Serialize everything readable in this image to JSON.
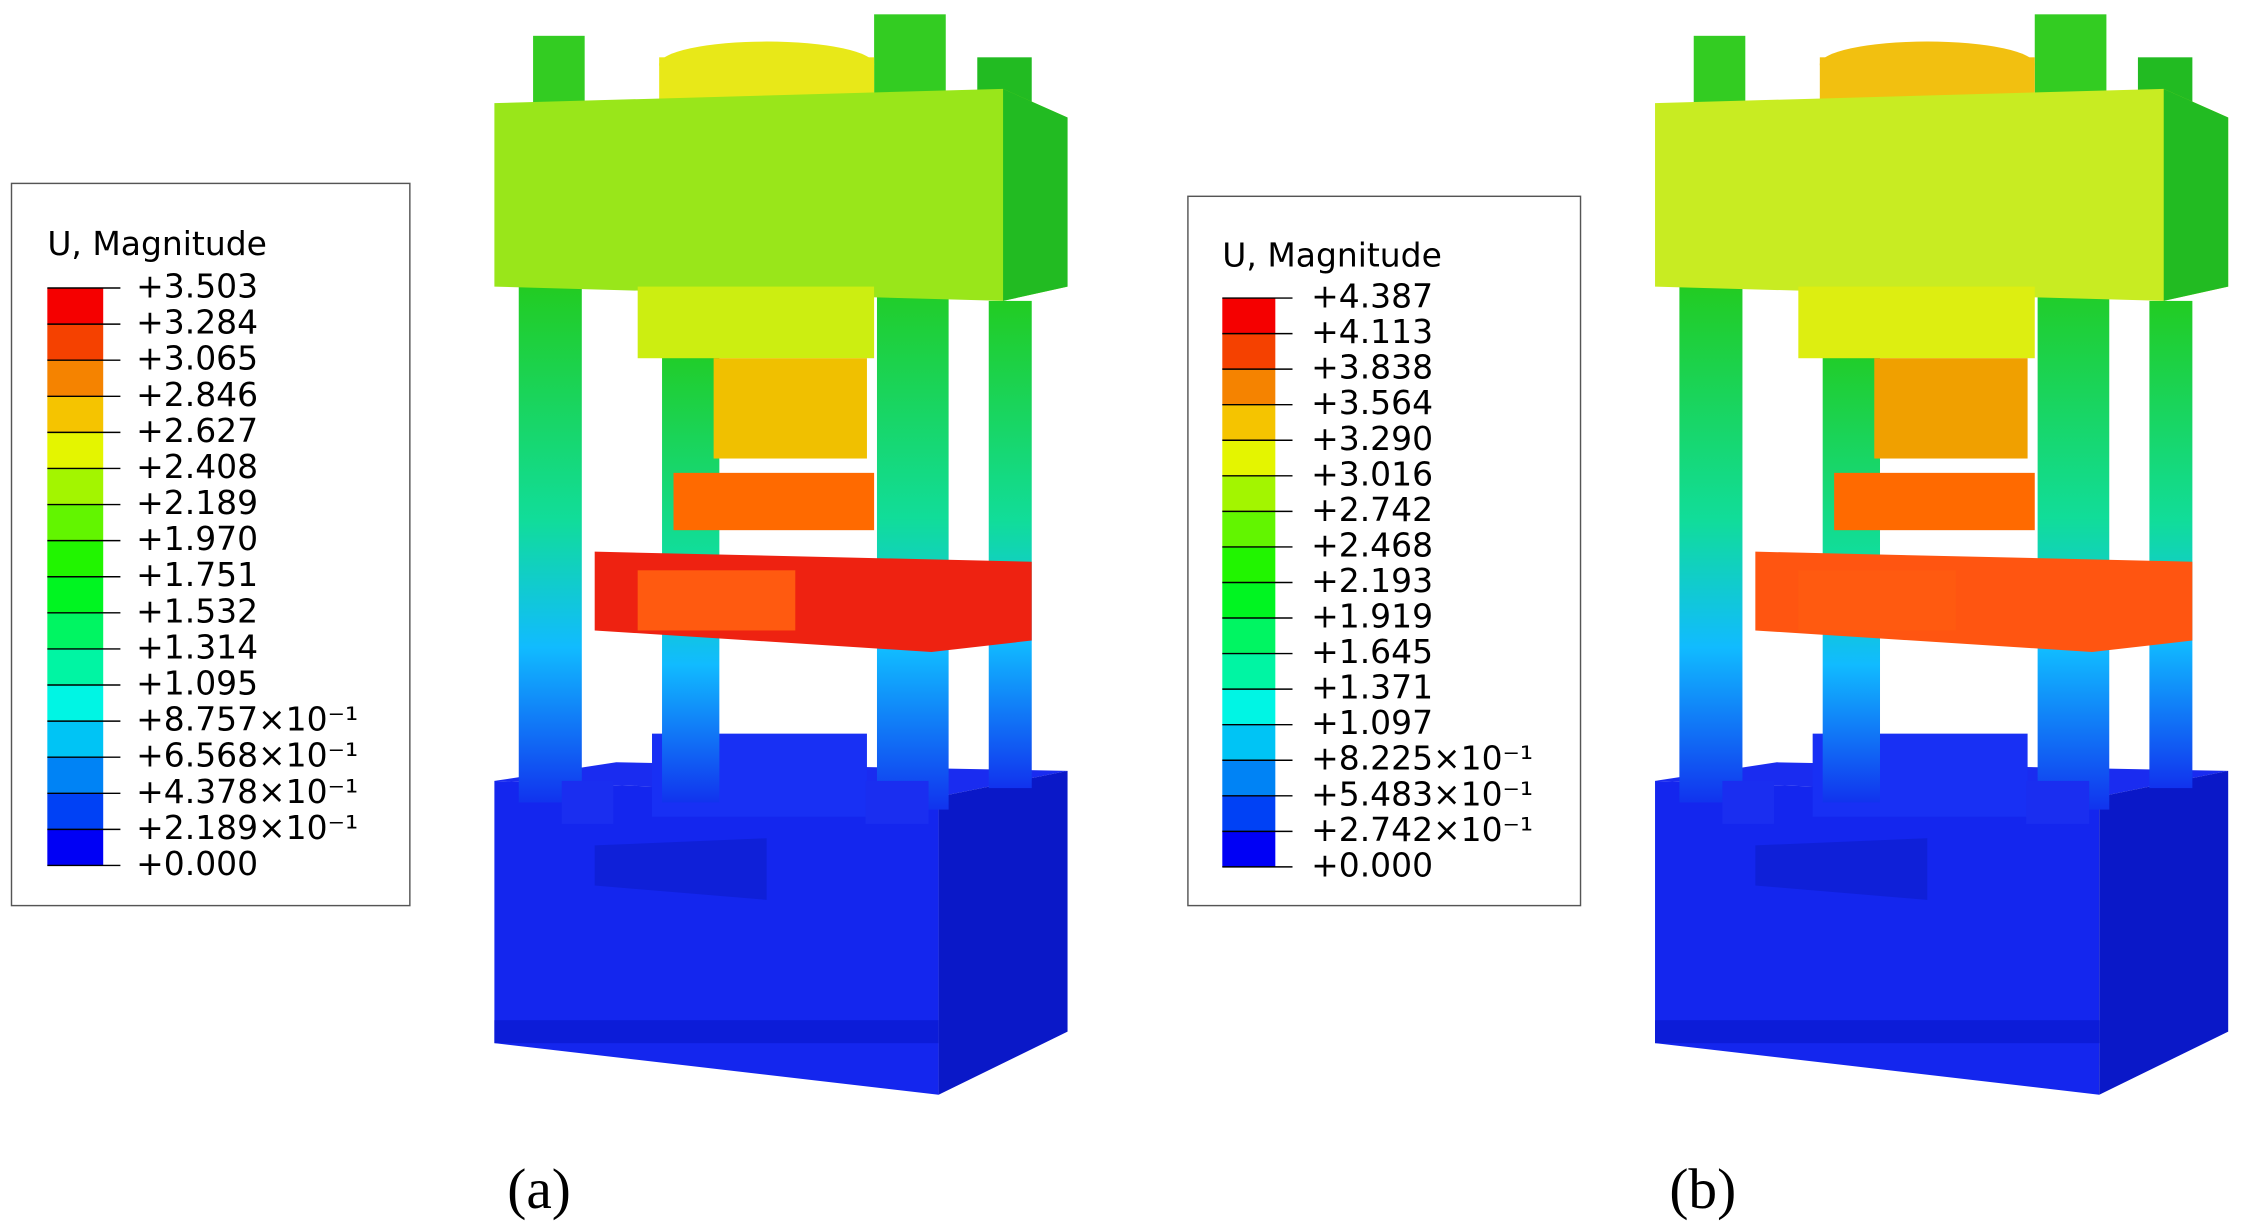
{
  "panels": [
    {
      "label": "(a)",
      "legend": {
        "title": "U, Magnitude",
        "levels": [
          "+3.503",
          "+3.284",
          "+3.065",
          "+2.846",
          "+2.627",
          "+2.408",
          "+2.189",
          "+1.970",
          "+1.751",
          "+1.532",
          "+1.314",
          "+1.095",
          "+8.757×10⁻¹",
          "+6.568×10⁻¹",
          "+4.378×10⁻¹",
          "+2.189×10⁻¹",
          "+0.000"
        ]
      }
    },
    {
      "label": "(b)",
      "legend": {
        "title": "U, Magnitude",
        "levels": [
          "+4.387",
          "+4.113",
          "+3.838",
          "+3.564",
          "+3.290",
          "+3.016",
          "+2.742",
          "+2.468",
          "+2.193",
          "+1.919",
          "+1.645",
          "+1.371",
          "+1.097",
          "+8.225×10⁻¹",
          "+5.483×10⁻¹",
          "+2.742×10⁻¹",
          "+0.000"
        ]
      }
    }
  ]
}
